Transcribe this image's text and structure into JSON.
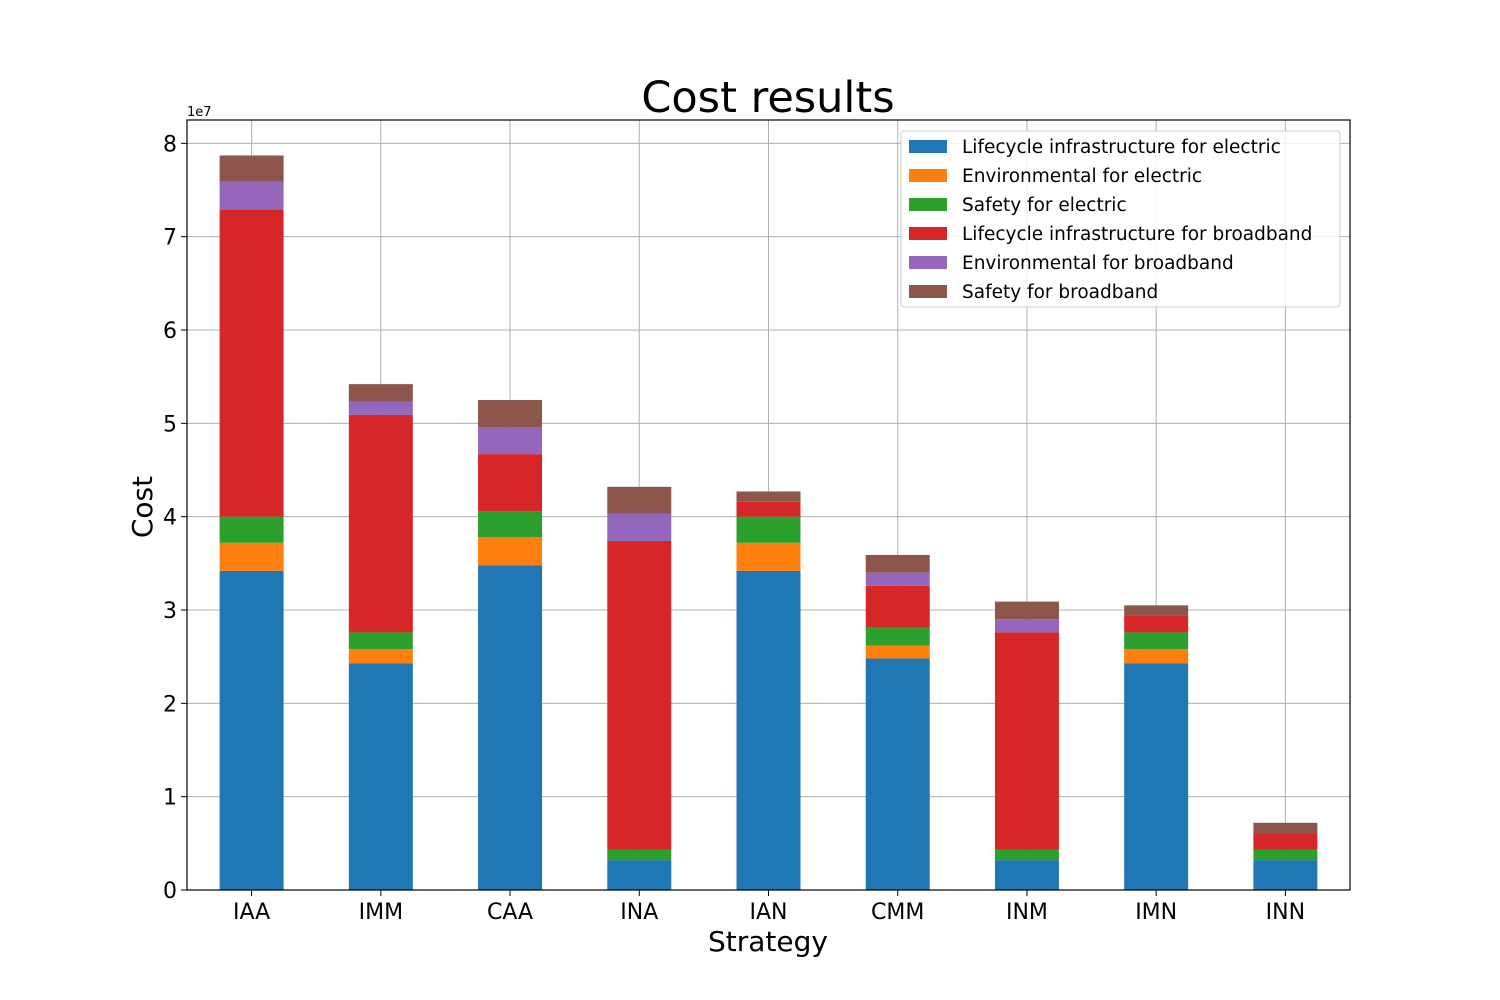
{
  "chart_data": {
    "type": "bar",
    "stacked": true,
    "title": "Cost results",
    "xlabel": "Strategy",
    "ylabel": "Cost",
    "y_offset_label": "1e7",
    "ylim": [
      0,
      82500000
    ],
    "yticks": [
      0,
      10000000,
      20000000,
      30000000,
      40000000,
      50000000,
      60000000,
      70000000,
      80000000
    ],
    "ytick_labels": [
      "0",
      "1",
      "2",
      "3",
      "4",
      "5",
      "6",
      "7",
      "8"
    ],
    "grid": true,
    "legend_position": "top-right",
    "categories": [
      "IAA",
      "IMM",
      "CAA",
      "INA",
      "IAN",
      "CMM",
      "INM",
      "IMN",
      "INN"
    ],
    "series": [
      {
        "name": "Lifecycle infrastructure for electric",
        "color": "#1f77b4",
        "values": [
          34200000,
          24300000,
          34800000,
          3200000,
          34200000,
          24800000,
          3200000,
          24300000,
          3200000
        ]
      },
      {
        "name": "Environmental for electric",
        "color": "#ff7f0e",
        "values": [
          3000000,
          1500000,
          3000000,
          0,
          3000000,
          1400000,
          0,
          1500000,
          0
        ]
      },
      {
        "name": "Safety for electric",
        "color": "#2ca02c",
        "values": [
          2800000,
          1800000,
          2800000,
          1100000,
          2800000,
          1900000,
          1100000,
          1800000,
          1100000
        ]
      },
      {
        "name": "Lifecycle infrastructure for broadband",
        "color": "#d62728",
        "values": [
          32900000,
          23300000,
          6100000,
          33100000,
          1600000,
          4500000,
          23300000,
          1800000,
          1800000
        ]
      },
      {
        "name": "Environmental for broadband",
        "color": "#9467bd",
        "values": [
          3000000,
          1400000,
          2900000,
          2900000,
          0,
          1400000,
          1400000,
          0,
          0
        ]
      },
      {
        "name": "Safety for broadband",
        "color": "#8c564b",
        "values": [
          2800000,
          1900000,
          2900000,
          2900000,
          1100000,
          1900000,
          1900000,
          1100000,
          1100000
        ]
      }
    ]
  }
}
